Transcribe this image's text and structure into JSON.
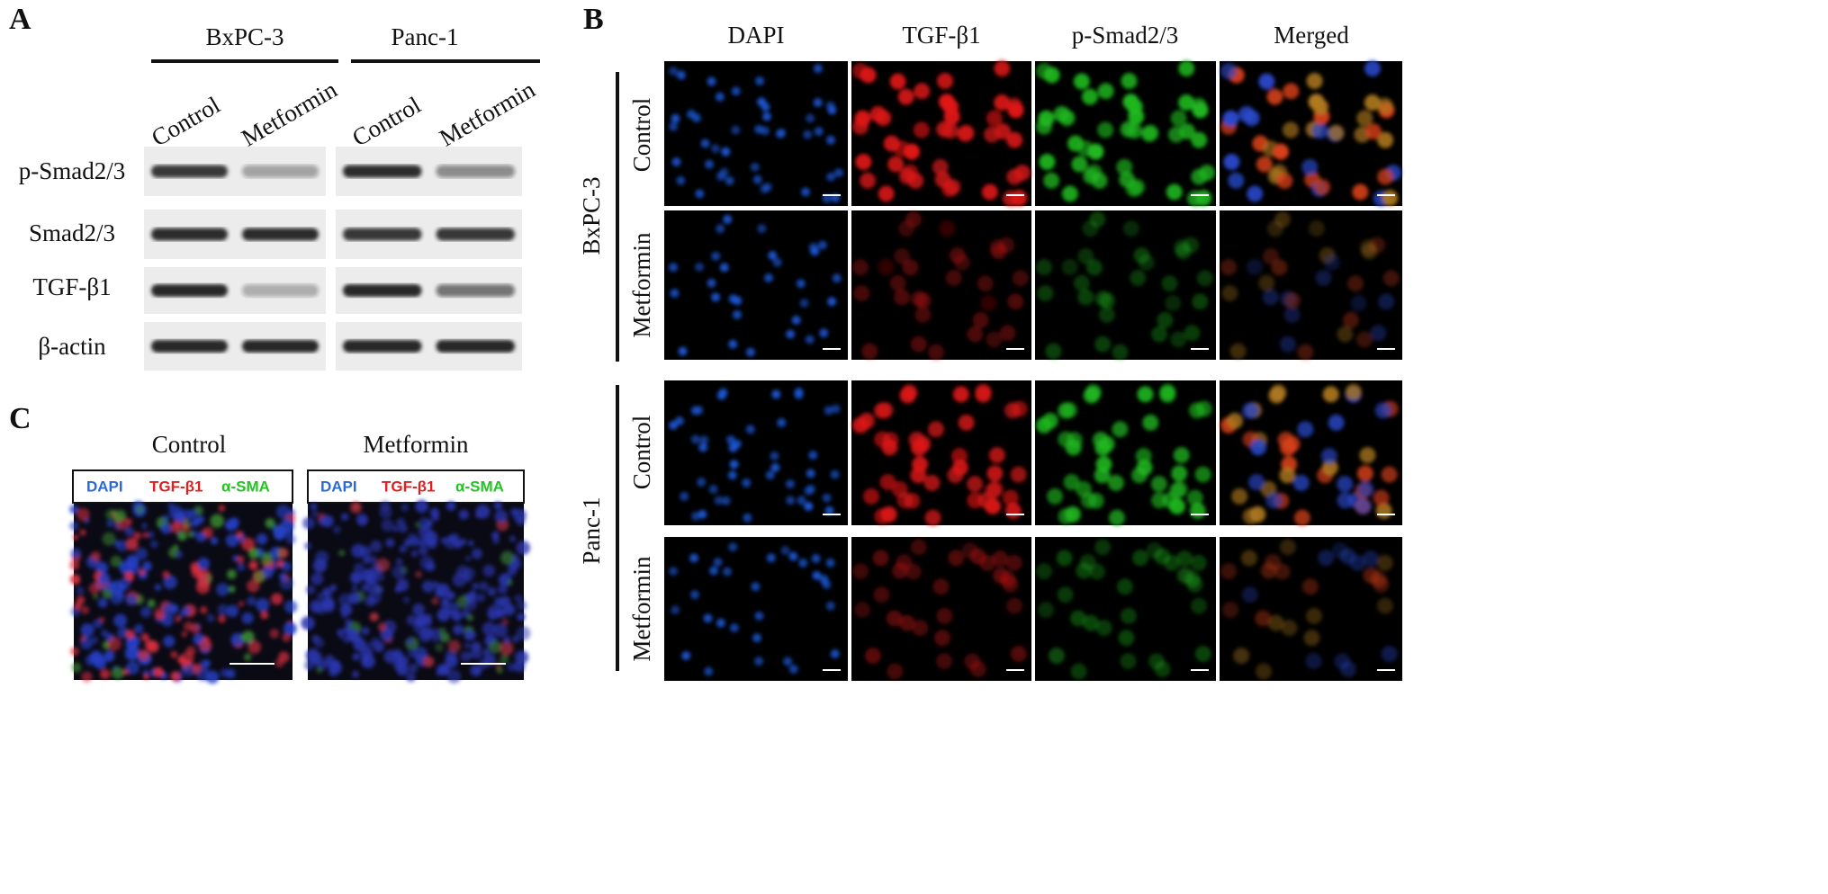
{
  "panel_a": {
    "label": "A",
    "groups": [
      {
        "name": "BxPC-3",
        "lanes": [
          "Control",
          "Metformin"
        ]
      },
      {
        "name": "Panc-1",
        "lanes": [
          "Control",
          "Metformin"
        ]
      }
    ],
    "rows": [
      "p-Smad2/3",
      "Smad2/3",
      "TGF-β1",
      "β-actin"
    ]
  },
  "panel_b": {
    "label": "B",
    "columns": [
      "DAPI",
      "TGF-β1",
      "p-Smad2/3",
      "Merged"
    ],
    "groups": [
      {
        "name": "BxPC-3",
        "rows": [
          "Control",
          "Metformin"
        ]
      },
      {
        "name": "Panc-1",
        "rows": [
          "Control",
          "Metformin"
        ]
      }
    ]
  },
  "panel_c": {
    "label": "C",
    "images": [
      {
        "title": "Control",
        "stains": [
          "DAPI",
          "TGF-β1",
          "α-SMA"
        ]
      },
      {
        "title": "Metformin",
        "stains": [
          "DAPI",
          "TGF-β1",
          "α-SMA"
        ]
      }
    ]
  }
}
